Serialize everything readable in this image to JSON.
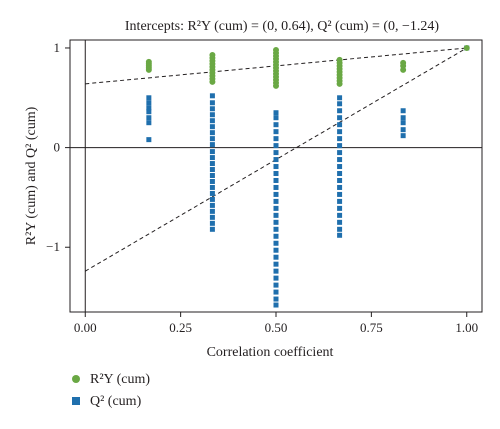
{
  "chart_data": {
    "type": "scatter",
    "title": "Intercepts: R²Y (cum) = (0, 0.64), Q² (cum) = (0, −1.24)",
    "xlabel": "Correlation coefficient",
    "ylabel": "R²Y (cum) and Q² (cum)",
    "xlim": [
      -0.04,
      1.04
    ],
    "ylim": [
      -1.65,
      1.08
    ],
    "x_ticks": [
      0,
      0.25,
      0.5,
      0.75,
      1
    ],
    "x_tick_labels": [
      "0.00",
      "0.25",
      "0.50",
      "0.75",
      "1.00"
    ],
    "y_ticks": [
      -1,
      0,
      1
    ],
    "y_tick_labels": [
      "−1",
      "0",
      "1"
    ],
    "grid": false,
    "legend_position": "bottom-left",
    "series": [
      {
        "name": "R²Y (cum)",
        "color": "#6aa844",
        "marker": "circle",
        "points": [
          [
            0.1667,
            0.78
          ],
          [
            0.1667,
            0.8
          ],
          [
            0.1667,
            0.82
          ],
          [
            0.1667,
            0.84
          ],
          [
            0.1667,
            0.86
          ],
          [
            0.3333,
            0.66
          ],
          [
            0.3333,
            0.69
          ],
          [
            0.3333,
            0.72
          ],
          [
            0.3333,
            0.75
          ],
          [
            0.3333,
            0.78
          ],
          [
            0.3333,
            0.81
          ],
          [
            0.3333,
            0.84
          ],
          [
            0.3333,
            0.87
          ],
          [
            0.3333,
            0.9
          ],
          [
            0.3333,
            0.93
          ],
          [
            0.5,
            0.62
          ],
          [
            0.5,
            0.65
          ],
          [
            0.5,
            0.68
          ],
          [
            0.5,
            0.71
          ],
          [
            0.5,
            0.74
          ],
          [
            0.5,
            0.77
          ],
          [
            0.5,
            0.8
          ],
          [
            0.5,
            0.83
          ],
          [
            0.5,
            0.86
          ],
          [
            0.5,
            0.89
          ],
          [
            0.5,
            0.92
          ],
          [
            0.5,
            0.95
          ],
          [
            0.5,
            0.98
          ],
          [
            0.6667,
            0.64
          ],
          [
            0.6667,
            0.67
          ],
          [
            0.6667,
            0.7
          ],
          [
            0.6667,
            0.73
          ],
          [
            0.6667,
            0.76
          ],
          [
            0.6667,
            0.79
          ],
          [
            0.6667,
            0.82
          ],
          [
            0.6667,
            0.85
          ],
          [
            0.6667,
            0.88
          ],
          [
            0.8333,
            0.78
          ],
          [
            0.8333,
            0.82
          ],
          [
            0.8333,
            0.85
          ],
          [
            1.0,
            1.0
          ]
        ]
      },
      {
        "name": "Q² (cum)",
        "color": "#1f6fad",
        "marker": "square",
        "points": [
          [
            0.1667,
            0.08
          ],
          [
            0.1667,
            0.25
          ],
          [
            0.1667,
            0.3
          ],
          [
            0.1667,
            0.36
          ],
          [
            0.1667,
            0.4
          ],
          [
            0.1667,
            0.45
          ],
          [
            0.1667,
            0.5
          ],
          [
            0.3333,
            -0.82
          ],
          [
            0.3333,
            -0.76
          ],
          [
            0.3333,
            -0.7
          ],
          [
            0.3333,
            -0.64
          ],
          [
            0.3333,
            -0.58
          ],
          [
            0.3333,
            -0.52
          ],
          [
            0.3333,
            -0.46
          ],
          [
            0.3333,
            -0.4
          ],
          [
            0.3333,
            -0.34
          ],
          [
            0.3333,
            -0.28
          ],
          [
            0.3333,
            -0.22
          ],
          [
            0.3333,
            -0.16
          ],
          [
            0.3333,
            -0.1
          ],
          [
            0.3333,
            -0.04
          ],
          [
            0.3333,
            0.03
          ],
          [
            0.3333,
            0.09
          ],
          [
            0.3333,
            0.15
          ],
          [
            0.3333,
            0.21
          ],
          [
            0.3333,
            0.27
          ],
          [
            0.3333,
            0.33
          ],
          [
            0.3333,
            0.39
          ],
          [
            0.3333,
            0.45
          ],
          [
            0.3333,
            0.52
          ],
          [
            0.5,
            -1.58
          ],
          [
            0.5,
            -1.52
          ],
          [
            0.5,
            -1.45
          ],
          [
            0.5,
            -1.38
          ],
          [
            0.5,
            -1.31
          ],
          [
            0.5,
            -1.24
          ],
          [
            0.5,
            -1.17
          ],
          [
            0.5,
            -1.1
          ],
          [
            0.5,
            -1.03
          ],
          [
            0.5,
            -0.96
          ],
          [
            0.5,
            -0.89
          ],
          [
            0.5,
            -0.82
          ],
          [
            0.5,
            -0.75
          ],
          [
            0.5,
            -0.68
          ],
          [
            0.5,
            -0.61
          ],
          [
            0.5,
            -0.54
          ],
          [
            0.5,
            -0.47
          ],
          [
            0.5,
            -0.4
          ],
          [
            0.5,
            -0.33
          ],
          [
            0.5,
            -0.26
          ],
          [
            0.5,
            -0.19
          ],
          [
            0.5,
            -0.12
          ],
          [
            0.5,
            -0.05
          ],
          [
            0.5,
            0.02
          ],
          [
            0.5,
            0.09
          ],
          [
            0.5,
            0.16
          ],
          [
            0.5,
            0.23
          ],
          [
            0.5,
            0.3
          ],
          [
            0.5,
            0.35
          ],
          [
            0.6667,
            -0.88
          ],
          [
            0.6667,
            -0.82
          ],
          [
            0.6667,
            -0.75
          ],
          [
            0.6667,
            -0.68
          ],
          [
            0.6667,
            -0.61
          ],
          [
            0.6667,
            -0.54
          ],
          [
            0.6667,
            -0.47
          ],
          [
            0.6667,
            -0.4
          ],
          [
            0.6667,
            -0.33
          ],
          [
            0.6667,
            -0.26
          ],
          [
            0.6667,
            -0.19
          ],
          [
            0.6667,
            -0.12
          ],
          [
            0.6667,
            -0.05
          ],
          [
            0.6667,
            0.02
          ],
          [
            0.6667,
            0.09
          ],
          [
            0.6667,
            0.16
          ],
          [
            0.6667,
            0.23
          ],
          [
            0.6667,
            0.3
          ],
          [
            0.6667,
            0.37
          ],
          [
            0.6667,
            0.44
          ],
          [
            0.6667,
            0.5
          ],
          [
            0.8333,
            0.12
          ],
          [
            0.8333,
            0.18
          ],
          [
            0.8333,
            0.25
          ],
          [
            0.8333,
            0.3
          ],
          [
            0.8333,
            0.37
          ],
          [
            1.0,
            1.0
          ]
        ]
      }
    ],
    "regression_lines": [
      {
        "series": "R²Y (cum)",
        "intercept": 0.64,
        "end": [
          1.0,
          1.0
        ]
      },
      {
        "series": "Q² (cum)",
        "intercept": -1.24,
        "end": [
          1.0,
          1.0
        ]
      }
    ],
    "reference_lines": {
      "y": 0,
      "x": 0
    }
  }
}
